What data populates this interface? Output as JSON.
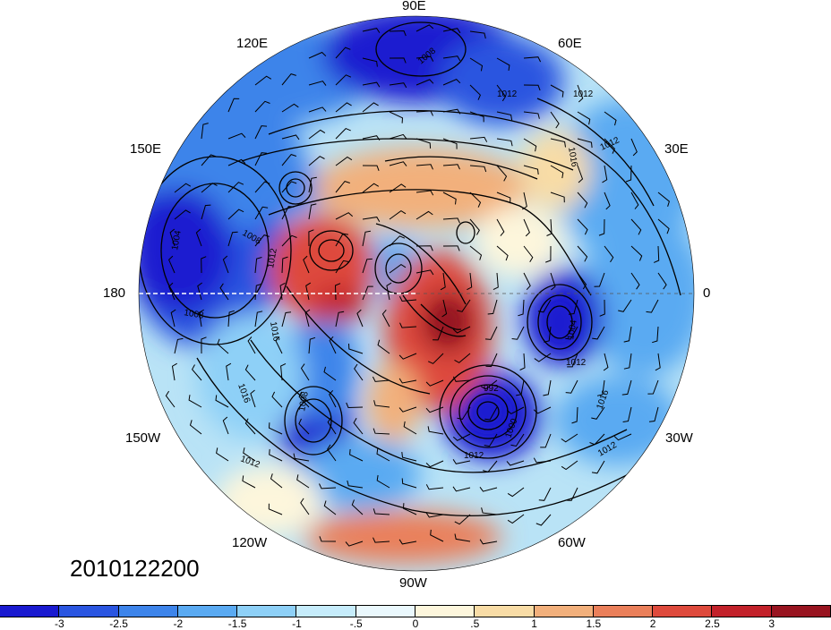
{
  "map": {
    "longitude_labels": {
      "e90": "90E",
      "e60": "60E",
      "e120": "120E",
      "e30": "30E",
      "e150": "150E",
      "lon180": "180",
      "lon0": "0",
      "w150": "150W",
      "w30": "30W",
      "w120": "120W",
      "w60": "60W",
      "w90": "90W"
    },
    "contour_labels": [
      "1008",
      "1012",
      "1012",
      "1012",
      "1016",
      "1004",
      "1008",
      "1008",
      "1012",
      "1016",
      "1004",
      "1012",
      "992",
      "1000",
      "1012",
      "1012",
      "1016",
      "1012",
      "1008",
      "1016"
    ],
    "timestamp": "2010122200",
    "projection": "north polar stereographic"
  },
  "colorbar": {
    "colors": [
      "#1a1ad0",
      "#2a55e0",
      "#3d84ea",
      "#5aaaf2",
      "#8ed0f7",
      "#c6ecfb",
      "#eaf8fd",
      "#fdf6dc",
      "#f8dca6",
      "#f2b07c",
      "#ea7f5a",
      "#de4a3c",
      "#c2212a",
      "#981420"
    ],
    "tick_labels": [
      "-3",
      "-2.5",
      "-2",
      "-1.5",
      "-1",
      "-.5",
      "0",
      ".5",
      "1",
      "1.5",
      "2",
      "2.5",
      "3"
    ]
  }
}
